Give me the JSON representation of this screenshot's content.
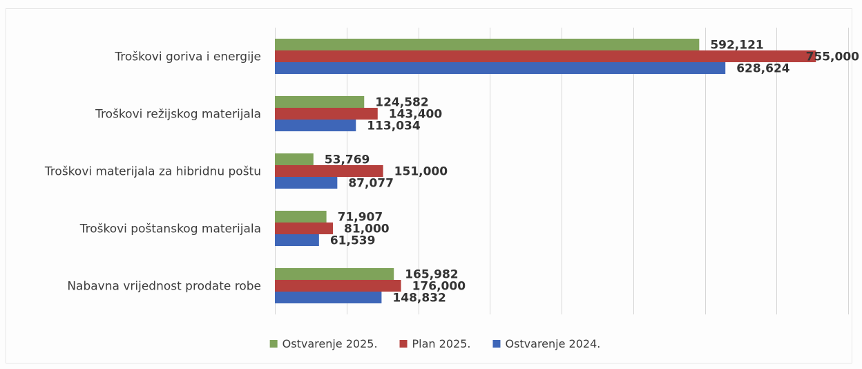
{
  "chart_data": {
    "type": "bar",
    "orientation": "horizontal",
    "categories": [
      "Troškovi goriva i energije",
      "Troškovi režijskog materijala",
      "Troškovi materijala za hibridnu poštu",
      "Troškovi poštanskog materijala",
      "Nabavna vrijednost prodate robe"
    ],
    "series": [
      {
        "name": "Ostvarenje 2025.",
        "color": "#7fa35a",
        "values": [
          592121,
          124582,
          53769,
          71907,
          165982
        ],
        "labels": [
          "592,121",
          "124,582",
          "53,769",
          "71,907",
          "165,982"
        ]
      },
      {
        "name": "Plan 2025.",
        "color": "#b5403d",
        "values": [
          755000,
          143400,
          151000,
          81000,
          176000
        ],
        "labels": [
          "755,000",
          "143,400",
          "151,000",
          "81,000",
          "176,000"
        ]
      },
      {
        "name": "Ostvarenje  2024.",
        "color": "#3e66b8",
        "values": [
          628624,
          113034,
          87077,
          61539,
          148832
        ],
        "labels": [
          "628,624",
          "113,034",
          "87,077",
          "61,539",
          "148,832"
        ]
      }
    ],
    "xlim": [
      0,
      800000
    ],
    "grid": true,
    "legend_position": "bottom"
  }
}
